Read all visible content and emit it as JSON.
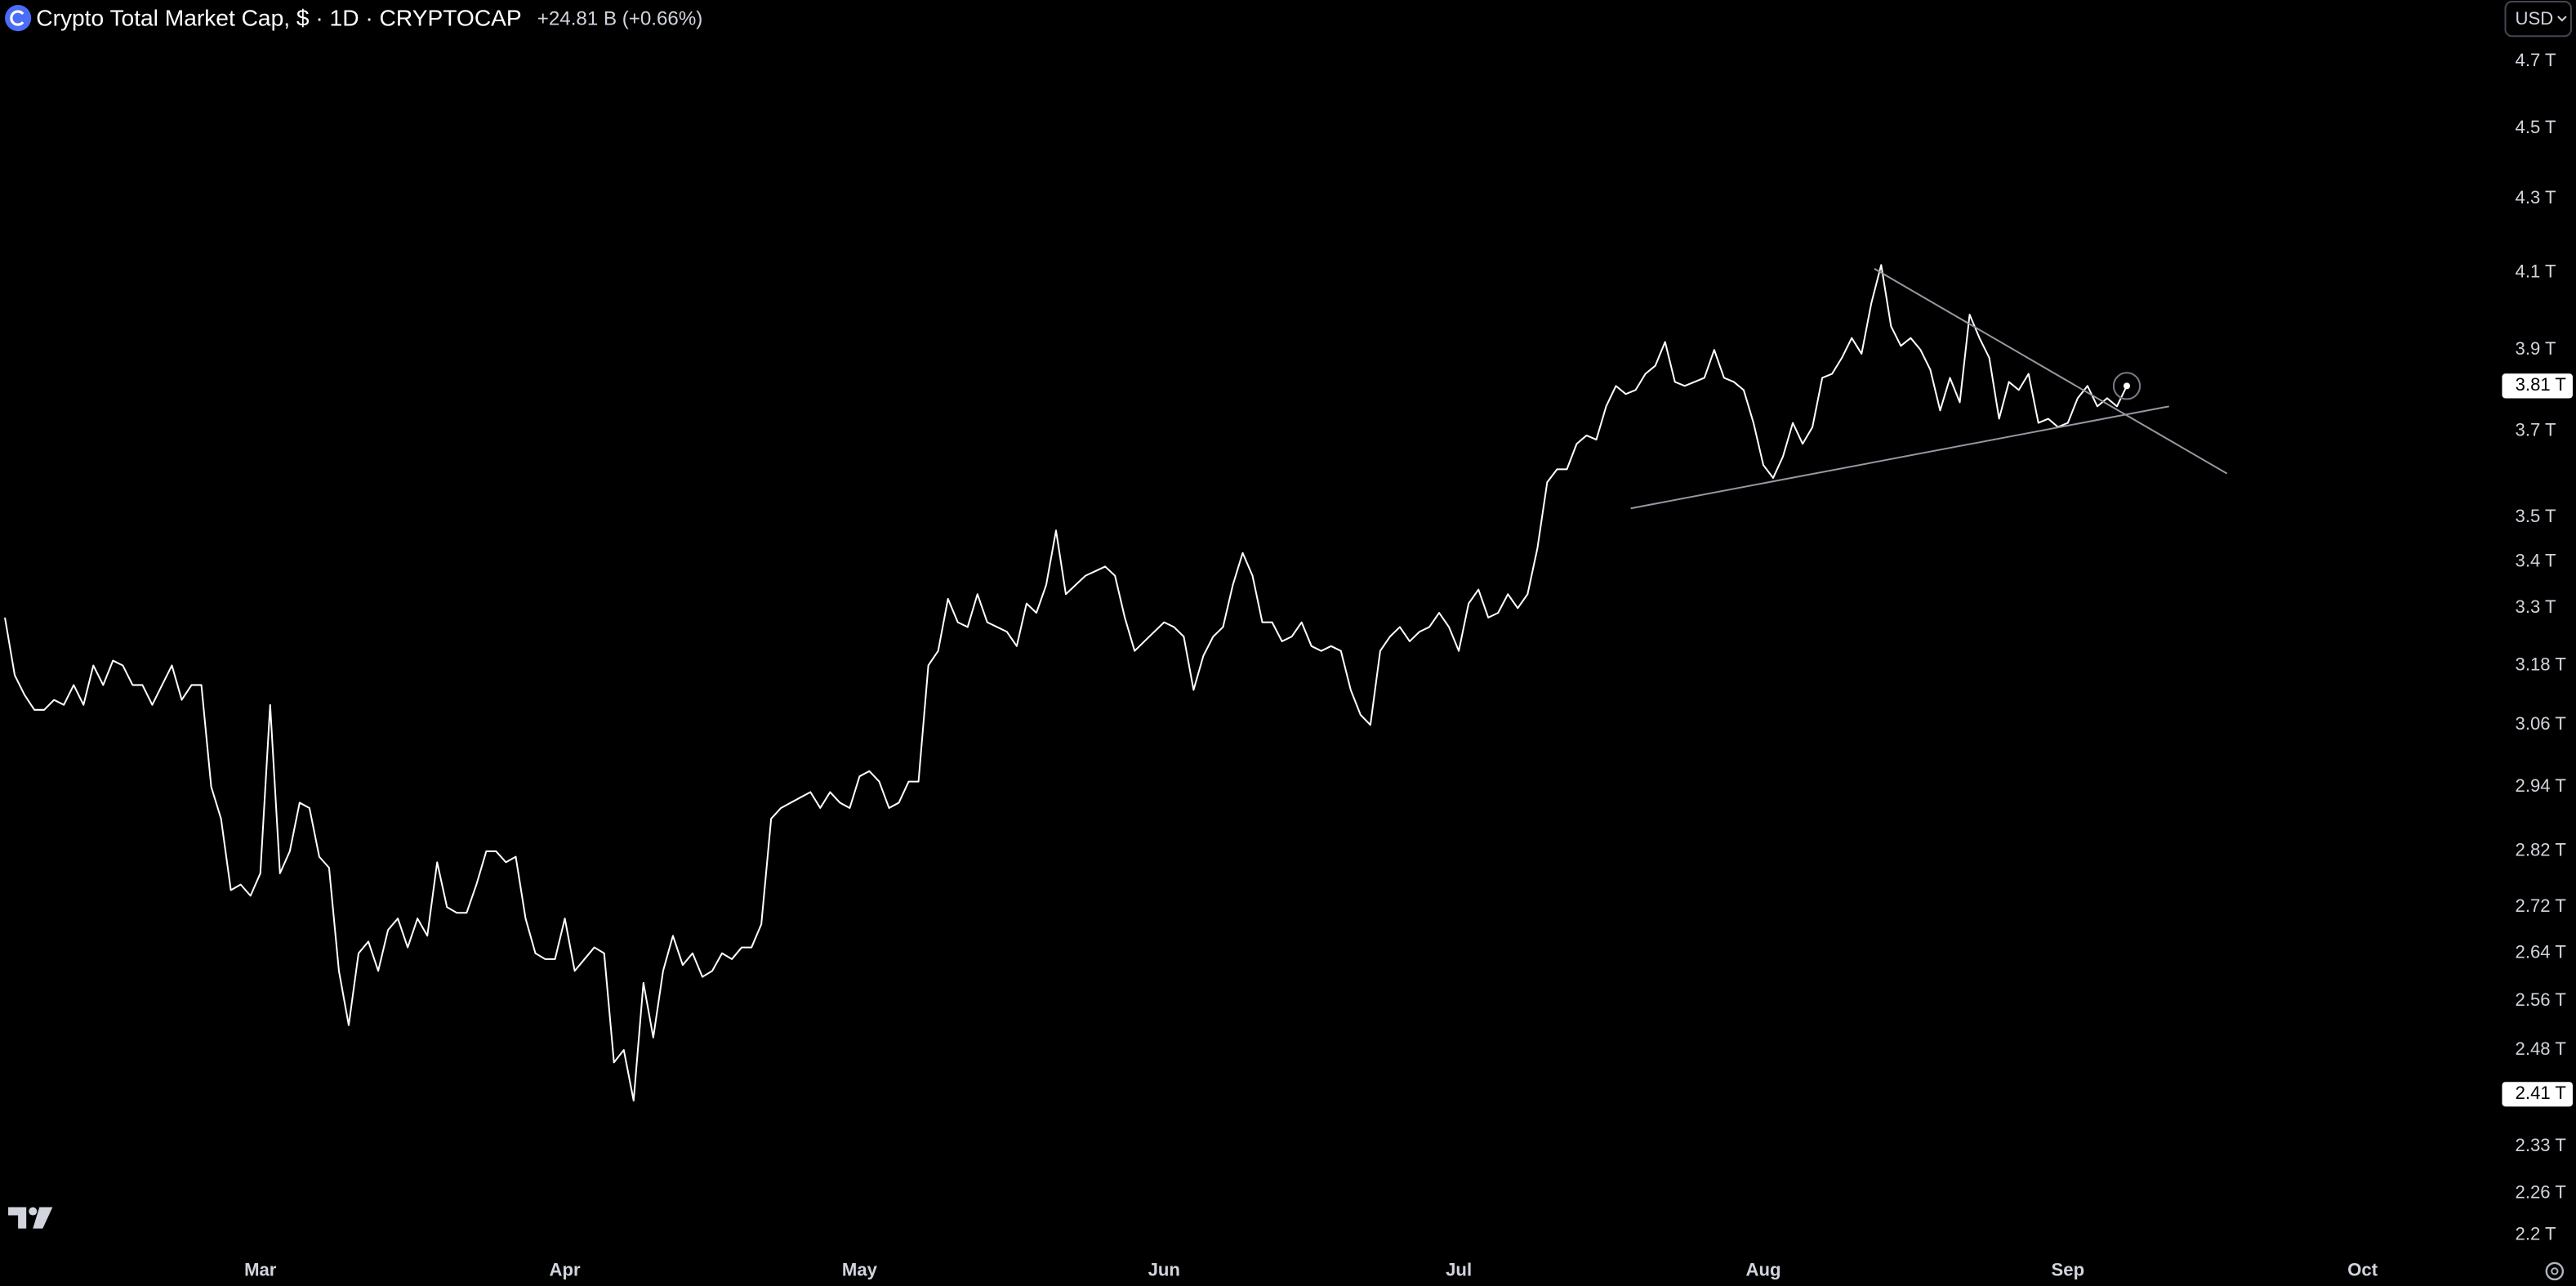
{
  "header": {
    "title": "Crypto Total Market Cap, $ · 1D · CRYPTOCAP",
    "change": "+24.81 B (+0.66%)",
    "currency": "USD"
  },
  "chart_data": {
    "type": "line",
    "log_scale": true,
    "grid": false,
    "color": "#ffffff",
    "values": [
      3.28,
      3.16,
      3.12,
      3.09,
      3.09,
      3.11,
      3.1,
      3.14,
      3.1,
      3.18,
      3.14,
      3.19,
      3.18,
      3.14,
      3.14,
      3.1,
      3.14,
      3.18,
      3.11,
      3.14,
      3.14,
      2.94,
      2.88,
      2.75,
      2.76,
      2.74,
      2.78,
      3.1,
      2.78,
      2.82,
      2.91,
      2.9,
      2.81,
      2.79,
      2.61,
      2.52,
      2.64,
      2.66,
      2.61,
      2.68,
      2.7,
      2.65,
      2.7,
      2.67,
      2.8,
      2.72,
      2.71,
      2.71,
      2.76,
      2.82,
      2.82,
      2.8,
      2.81,
      2.7,
      2.64,
      2.63,
      2.63,
      2.7,
      2.61,
      2.63,
      2.65,
      2.64,
      2.46,
      2.48,
      2.4,
      2.59,
      2.5,
      2.61,
      2.67,
      2.62,
      2.64,
      2.6,
      2.61,
      2.64,
      2.63,
      2.65,
      2.65,
      2.69,
      2.88,
      2.9,
      2.91,
      2.92,
      2.93,
      2.9,
      2.93,
      2.91,
      2.9,
      2.96,
      2.97,
      2.95,
      2.9,
      2.91,
      2.95,
      2.95,
      3.18,
      3.21,
      3.32,
      3.27,
      3.26,
      3.33,
      3.27,
      3.26,
      3.25,
      3.22,
      3.31,
      3.29,
      3.35,
      3.47,
      3.33,
      3.35,
      3.37,
      3.38,
      3.39,
      3.37,
      3.28,
      3.21,
      3.23,
      3.25,
      3.27,
      3.26,
      3.24,
      3.13,
      3.2,
      3.24,
      3.26,
      3.35,
      3.42,
      3.37,
      3.27,
      3.27,
      3.23,
      3.24,
      3.27,
      3.22,
      3.21,
      3.22,
      3.21,
      3.13,
      3.08,
      3.06,
      3.21,
      3.24,
      3.26,
      3.23,
      3.25,
      3.26,
      3.29,
      3.26,
      3.21,
      3.31,
      3.34,
      3.28,
      3.29,
      3.33,
      3.3,
      3.33,
      3.43,
      3.58,
      3.61,
      3.61,
      3.67,
      3.69,
      3.68,
      3.76,
      3.81,
      3.79,
      3.8,
      3.84,
      3.86,
      3.92,
      3.82,
      3.81,
      3.82,
      3.83,
      3.9,
      3.83,
      3.82,
      3.8,
      3.72,
      3.62,
      3.59,
      3.64,
      3.72,
      3.67,
      3.71,
      3.83,
      3.84,
      3.88,
      3.93,
      3.89,
      4.02,
      4.12,
      3.96,
      3.91,
      3.93,
      3.9,
      3.85,
      3.75,
      3.83,
      3.77,
      3.99,
      3.93,
      3.88,
      3.73,
      3.82,
      3.8,
      3.84,
      3.72,
      3.73,
      3.71,
      3.72,
      3.78,
      3.81,
      3.76,
      3.78,
      3.76,
      3.81
    ],
    "xlim": [
      -0.5,
      253.7
    ],
    "xticks": [
      {
        "value": 26,
        "label": "Mar"
      },
      {
        "value": 57,
        "label": "Apr"
      },
      {
        "value": 87,
        "label": "May"
      },
      {
        "value": 118,
        "label": "Jun"
      },
      {
        "value": 148,
        "label": "Jul"
      },
      {
        "value": 179,
        "label": "Aug"
      },
      {
        "value": 210,
        "label": "Sep"
      },
      {
        "value": 240,
        "label": "Oct"
      }
    ],
    "ylim": [
      2.17,
      4.89
    ],
    "yticks": [
      {
        "value": 4.7,
        "label": "4.7 T"
      },
      {
        "value": 4.5,
        "label": "4.5 T"
      },
      {
        "value": 4.3,
        "label": "4.3 T"
      },
      {
        "value": 4.1,
        "label": "4.1 T"
      },
      {
        "value": 3.9,
        "label": "3.9 T"
      },
      {
        "value": 3.7,
        "label": "3.7 T"
      },
      {
        "value": 3.5,
        "label": "3.5 T"
      },
      {
        "value": 3.4,
        "label": "3.4 T"
      },
      {
        "value": 3.3,
        "label": "3.3 T"
      },
      {
        "value": 3.18,
        "label": "3.18 T"
      },
      {
        "value": 3.06,
        "label": "3.06 T"
      },
      {
        "value": 2.94,
        "label": "2.94 T"
      },
      {
        "value": 2.82,
        "label": "2.82 T"
      },
      {
        "value": 2.72,
        "label": "2.72 T"
      },
      {
        "value": 2.64,
        "label": "2.64 T"
      },
      {
        "value": 2.56,
        "label": "2.56 T"
      },
      {
        "value": 2.48,
        "label": "2.48 T"
      },
      {
        "value": 2.33,
        "label": "2.33 T"
      },
      {
        "value": 2.26,
        "label": "2.26 T"
      },
      {
        "value": 2.2,
        "label": "2.2 T"
      }
    ],
    "price_labels": [
      {
        "value": 3.81,
        "label": "3.81 T"
      },
      {
        "value": 2.41,
        "label": "2.41 T"
      }
    ],
    "trendlines": [
      {
        "x": [
          190.3,
          226.2
        ],
        "y": [
          4.11,
          3.6
        ],
        "color": "#9598a1"
      },
      {
        "x": [
          165.5,
          220.3
        ],
        "y": [
          3.52,
          3.76
        ],
        "color": "#9598a1"
      }
    ]
  }
}
